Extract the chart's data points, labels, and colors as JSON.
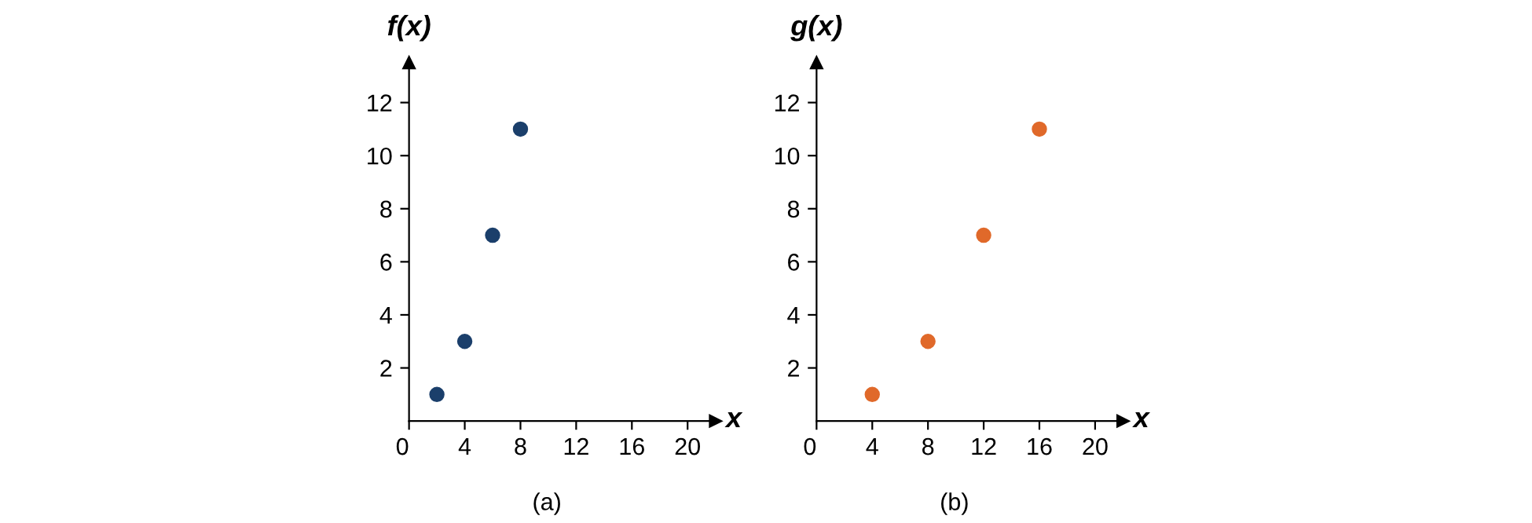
{
  "chart_data": [
    {
      "type": "scatter",
      "xlabel": "x",
      "ylabel": "f(x)",
      "annotations": [
        "(a)"
      ],
      "marker": "circle",
      "grid": false,
      "legend": false,
      "series": [
        {
          "color": "#1b3f6b",
          "x": [
            2,
            4,
            6,
            8
          ],
          "values": [
            1,
            3,
            7,
            11
          ]
        }
      ],
      "xlim": [
        0,
        22
      ],
      "ylim": [
        0,
        13.5
      ],
      "xticks": [
        {
          "value": 0,
          "label": "0"
        },
        4,
        8,
        12,
        16,
        20
      ],
      "yticks": [
        2,
        4,
        6,
        8,
        10,
        12
      ]
    },
    {
      "type": "scatter",
      "xlabel": "x",
      "ylabel": "g(x)",
      "annotations": [
        "(b)"
      ],
      "marker": "circle",
      "grid": false,
      "legend": false,
      "series": [
        {
          "color": "#e0692a",
          "x": [
            4,
            8,
            12,
            16
          ],
          "values": [
            1,
            3,
            7,
            11
          ]
        }
      ],
      "xlim": [
        0,
        22
      ],
      "ylim": [
        0,
        13.5
      ],
      "xticks": [
        {
          "value": 0,
          "label": "0"
        },
        4,
        8,
        12,
        16,
        20
      ],
      "yticks": [
        2,
        4,
        6,
        8,
        10,
        12
      ]
    }
  ]
}
